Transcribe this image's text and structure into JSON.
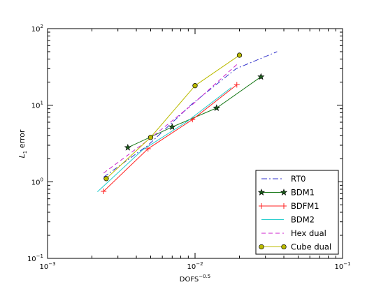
{
  "chart_data": {
    "type": "line",
    "xscale": "log",
    "yscale": "log",
    "xlim": [
      0.001,
      0.1
    ],
    "ylim": [
      0.1,
      100
    ],
    "xlabel": "DOFS",
    "xlabel_sup": "−0.5",
    "ylabel": "L",
    "ylabel_sub": "1",
    "ylabel_rest": " error",
    "grid": false,
    "legend_position": "lower-right",
    "x_ticks": [
      {
        "value": 0.001,
        "base": "10",
        "exp": "−3"
      },
      {
        "value": 0.01,
        "base": "10",
        "exp": "−2"
      },
      {
        "value": 0.1,
        "base": "10",
        "exp": "−1"
      }
    ],
    "y_ticks": [
      {
        "value": 0.1,
        "base": "10",
        "exp": "−1"
      },
      {
        "value": 1,
        "base": "10",
        "exp": "0"
      },
      {
        "value": 10,
        "base": "10",
        "exp": "1"
      },
      {
        "value": 100,
        "base": "10",
        "exp": "2"
      }
    ],
    "series": [
      {
        "name": "RT0",
        "color": "#3333cc",
        "dash": "8 3 2 3",
        "marker": "none",
        "x": [
          0.0024,
          0.0048,
          0.0096,
          0.019,
          0.036
        ],
        "y": [
          1.15,
          3.0,
          10.5,
          30.0,
          50.0
        ]
      },
      {
        "name": "BDM1",
        "color": "#1a7a1a",
        "dash": "",
        "marker": "star",
        "x": [
          0.0035,
          0.007,
          0.014,
          0.028
        ],
        "y": [
          2.8,
          5.2,
          9.2,
          23.5
        ]
      },
      {
        "name": "BDFM1",
        "color": "#ff2222",
        "dash": "",
        "marker": "plus",
        "x": [
          0.0024,
          0.0048,
          0.0096,
          0.0192
        ],
        "y": [
          0.75,
          2.7,
          6.5,
          18.5
        ]
      },
      {
        "name": "BDM2",
        "color": "#22cccc",
        "dash": "",
        "marker": "none",
        "x": [
          0.00218,
          0.0044,
          0.0088,
          0.0176
        ],
        "y": [
          0.74,
          2.6,
          6.1,
          17.0
        ]
      },
      {
        "name": "Hex dual",
        "color": "#cc22cc",
        "dash": "6 4",
        "marker": "none",
        "x": [
          0.0024,
          0.0048,
          0.0096,
          0.0192
        ],
        "y": [
          1.3,
          3.5,
          10.2,
          34.0
        ]
      },
      {
        "name": "Cube dual",
        "color": "#bbbb00",
        "dash": "",
        "marker": "circle",
        "x": [
          0.0025,
          0.005,
          0.01,
          0.02
        ],
        "y": [
          1.1,
          3.8,
          18.0,
          45.0
        ]
      }
    ]
  }
}
